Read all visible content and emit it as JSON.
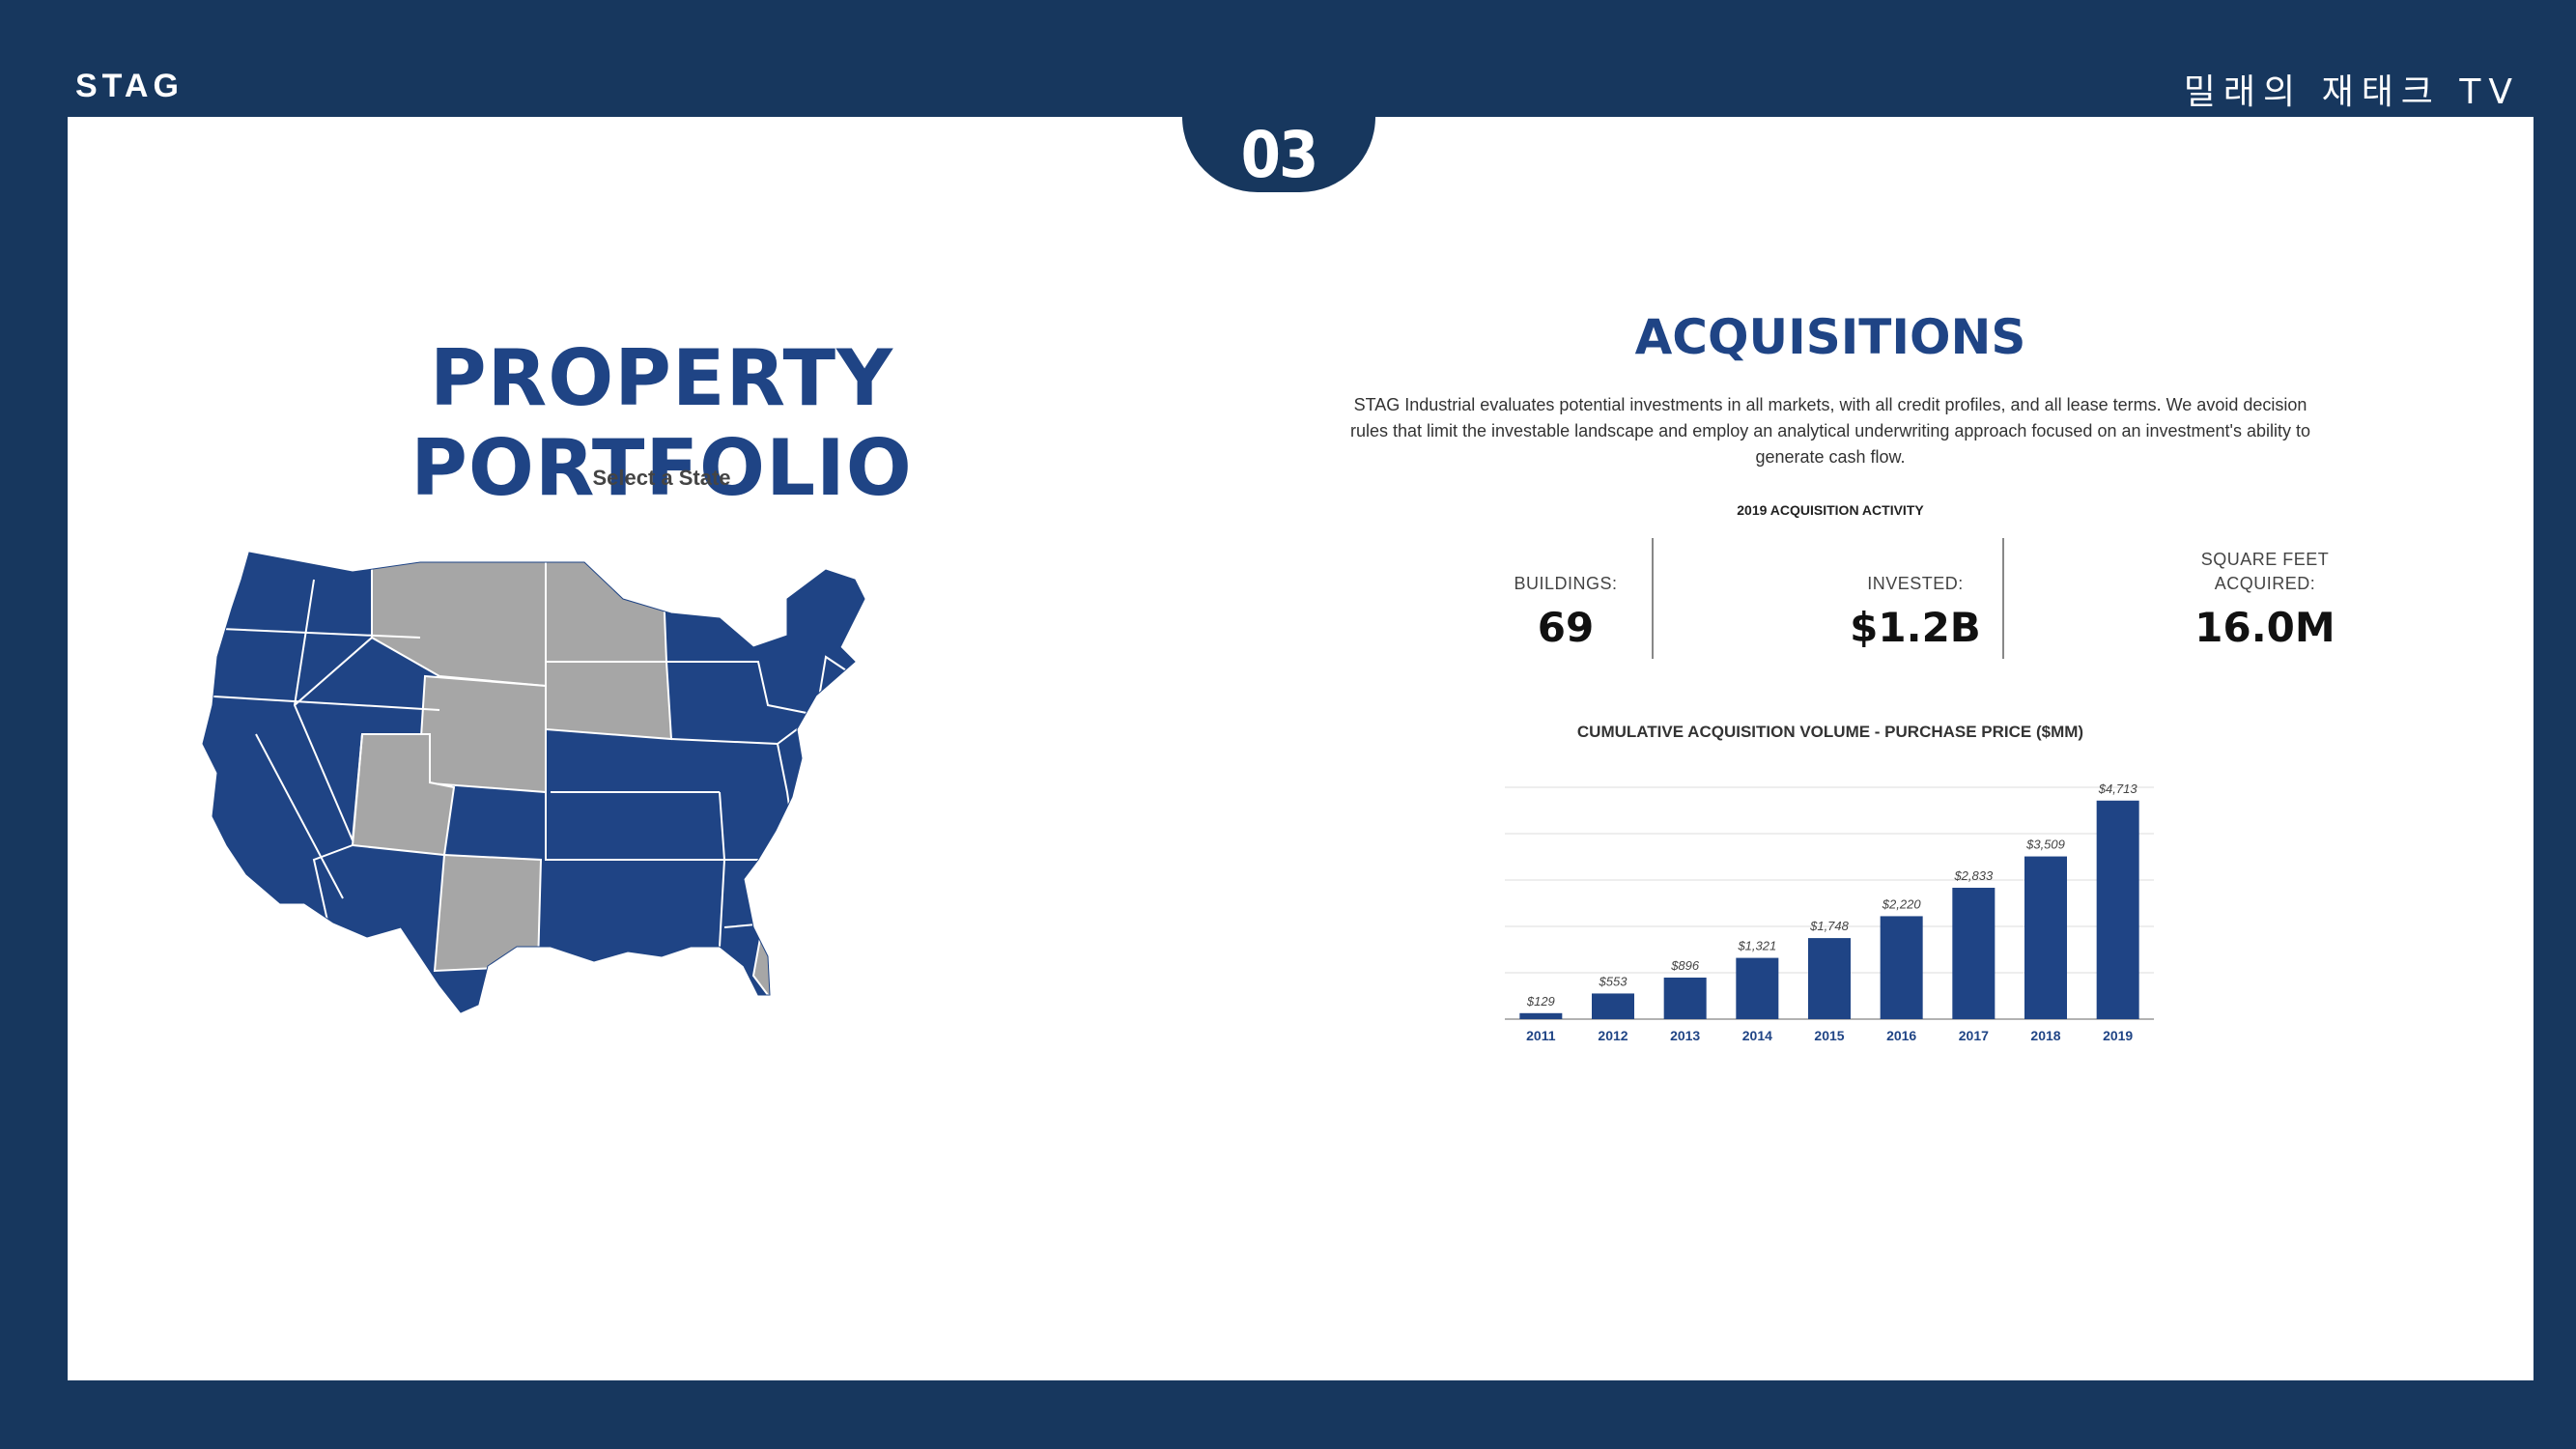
{
  "header": {
    "brand": "STAG",
    "channel": "밀래의 재태크 TV",
    "section_number": "03"
  },
  "left": {
    "title": "PROPERTY PORTFOLIO",
    "subtitle": "Select a State",
    "map_colors": {
      "active": "#1f4485",
      "inactive": "#a6a6a6",
      "border": "#ffffff"
    }
  },
  "right": {
    "title": "ACQUISITIONS",
    "description": "STAG Industrial evaluates potential investments in all markets, with all credit profiles, and all lease terms. We avoid decision rules that limit the investable landscape and employ an analytical underwriting approach focused on an investment's ability to generate cash flow.",
    "activity_title": "2019 ACQUISITION ACTIVITY",
    "stats": [
      {
        "label": "BUILDINGS:",
        "value": "69"
      },
      {
        "label": "INVESTED:",
        "value": "$1.2B"
      },
      {
        "label": "SQUARE FEET ACQUIRED:",
        "value": "16.0M"
      }
    ]
  },
  "chart_data": {
    "type": "bar",
    "title": "CUMULATIVE ACQUISITION VOLUME - PURCHASE PRICE ($MM)",
    "categories": [
      "2011",
      "2012",
      "2013",
      "2014",
      "2015",
      "2016",
      "2017",
      "2018",
      "2019"
    ],
    "values": [
      129,
      553,
      896,
      1321,
      1748,
      2220,
      2833,
      3509,
      4713
    ],
    "data_labels": [
      "$129",
      "$553",
      "$896",
      "$1,321",
      "$1,748",
      "$2,220",
      "$2,833",
      "$3,509",
      "$4,713"
    ],
    "ylim": [
      0,
      5000
    ],
    "grid": true,
    "bar_color": "#1f4485"
  }
}
